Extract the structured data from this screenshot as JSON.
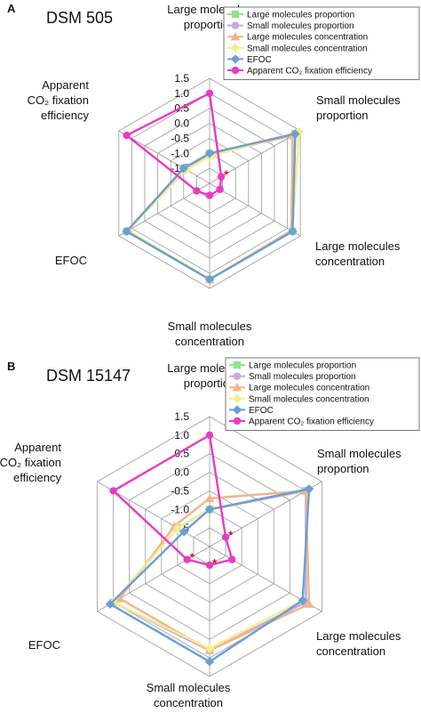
{
  "chart_data": [
    {
      "type": "radar",
      "panel_letter": "A",
      "title": "DSM 505",
      "axes": [
        {
          "lines": [
            "Large molecules",
            "proportion"
          ]
        },
        {
          "lines": [
            "Small molecules",
            "proportion"
          ]
        },
        {
          "lines": [
            "Large molecules",
            "concentration"
          ]
        },
        {
          "lines": [
            "Small molecules",
            "concentration"
          ]
        },
        {
          "lines": [
            "EFOC"
          ]
        },
        {
          "lines": [
            "Apparent",
            "CO₂ fixation",
            "efficiency"
          ]
        }
      ],
      "ticks": [
        "-1.5",
        "-1.0",
        "-0.5",
        "0.0",
        "0.5",
        "1.0",
        "1.5"
      ],
      "rmin": -2.0,
      "rmax": 1.5,
      "significance_marker": "*",
      "significant_axes": [
        1
      ],
      "series": [
        {
          "name": "Large molecules proportion",
          "color": "#8fe58a",
          "marker": "square",
          "values": [
            -1.0,
            1.3,
            1.2,
            1.2,
            1.2,
            -1.0
          ]
        },
        {
          "name": "Small molecules proportion",
          "color": "#c8a8e6",
          "marker": "circle",
          "values": [
            -1.0,
            1.3,
            1.2,
            1.2,
            1.2,
            -1.0
          ]
        },
        {
          "name": "Large molecules concentration",
          "color": "#f4b48a",
          "marker": "triangle",
          "values": [
            -1.05,
            1.2,
            1.15,
            1.2,
            1.15,
            -1.0
          ]
        },
        {
          "name": "Small molecules concentration",
          "color": "#f2ee8e",
          "marker": "diamond",
          "values": [
            -1.1,
            1.45,
            1.2,
            1.2,
            1.15,
            -1.1
          ]
        },
        {
          "name": "EFOC",
          "color": "#6a9fd6",
          "marker": "diamond",
          "values": [
            -1.0,
            1.3,
            1.2,
            1.2,
            1.2,
            -1.0
          ]
        },
        {
          "name": "Apparent CO₂ fixation efficiency",
          "color": "#e83bc4",
          "marker": "circle",
          "values": [
            1.0,
            -1.55,
            -1.6,
            -1.6,
            -1.5,
            1.2
          ]
        }
      ]
    },
    {
      "type": "radar",
      "panel_letter": "B",
      "title": "DSM 15147",
      "axes": [
        {
          "lines": [
            "Large molecules",
            "proportion"
          ]
        },
        {
          "lines": [
            "Small molecules",
            "proportion"
          ]
        },
        {
          "lines": [
            "Large molecules",
            "concentration"
          ]
        },
        {
          "lines": [
            "Small molecules",
            "concentration"
          ]
        },
        {
          "lines": [
            "EFOC"
          ]
        },
        {
          "lines": [
            "Apparent",
            "CO₂ fixation",
            "efficiency"
          ]
        }
      ],
      "ticks": [
        "-1.5",
        "-1.0",
        "-0.5",
        "0.0",
        "0.5",
        "1.0",
        "1.5"
      ],
      "rmin": -2.0,
      "rmax": 1.5,
      "significance_marker": "*",
      "significant_axes": [
        1,
        3,
        4
      ],
      "series": [
        {
          "name": "Large molecules proportion",
          "color": "#8fe58a",
          "marker": "square",
          "values": [
            -1.0,
            1.0,
            1.0,
            0.8,
            1.0,
            -1.0
          ]
        },
        {
          "name": "Small molecules proportion",
          "color": "#c8a8e6",
          "marker": "circle",
          "values": [
            -1.0,
            1.0,
            1.0,
            0.8,
            1.0,
            -1.0
          ]
        },
        {
          "name": "Large molecules concentration",
          "color": "#f4b48a",
          "marker": "triangle",
          "values": [
            -0.7,
            1.0,
            1.1,
            0.8,
            0.8,
            -0.9
          ]
        },
        {
          "name": "Small molecules concentration",
          "color": "#f2ee8e",
          "marker": "diamond",
          "values": [
            -1.0,
            1.1,
            0.9,
            0.75,
            1.0,
            -1.0
          ]
        },
        {
          "name": "EFOC",
          "color": "#6a9fd6",
          "marker": "diamond",
          "values": [
            -1.0,
            1.1,
            0.9,
            1.1,
            1.1,
            -1.2
          ]
        },
        {
          "name": "Apparent CO₂ fixation efficiency",
          "color": "#e83bc4",
          "marker": "circle",
          "values": [
            1.0,
            -1.5,
            -1.3,
            -1.5,
            -1.3,
            1.0
          ]
        }
      ]
    }
  ]
}
